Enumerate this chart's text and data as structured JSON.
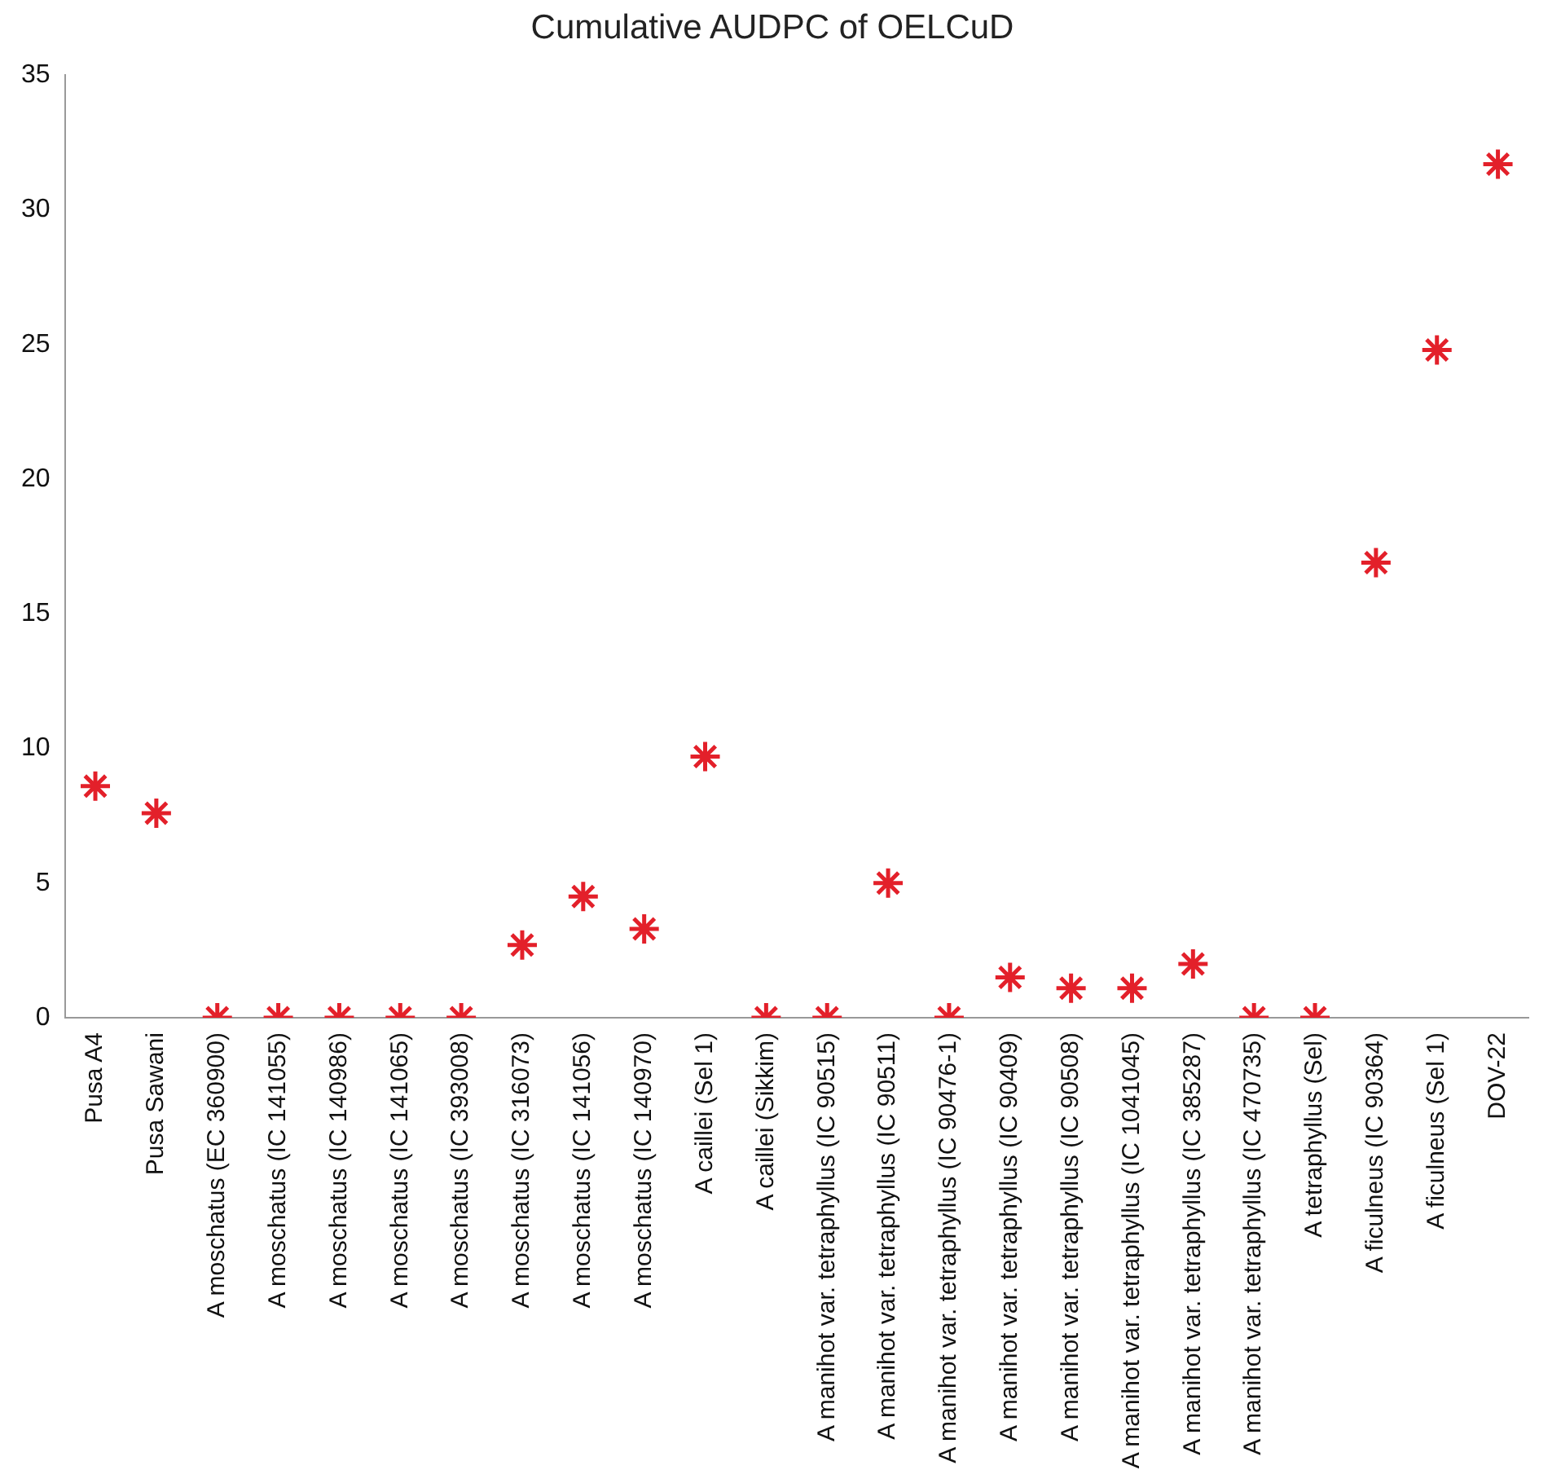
{
  "chart_data": {
    "type": "scatter",
    "title": "Cumulative AUDPC of OELCuD",
    "categories": [
      "Pusa A4",
      "Pusa Sawani",
      "A moschatus (EC 360900)",
      "A moschatus (IC 141055)",
      "A moschatus (IC 140986)",
      "A moschatus (IC 141065)",
      "A moschatus (IC 393008)",
      "A moschatus (IC 316073)",
      "A moschatus (IC 141056)",
      "A moschatus (IC 140970)",
      "A caillei (Sel 1)",
      "A caillei (Sikkim)",
      "A manihot var. tetraphyllus (IC 90515)",
      "A manihot var. tetraphyllus (IC 90511)",
      "A manihot var. tetraphyllus (IC 90476-1)",
      "A manihot var. tetraphyllus (IC 90409)",
      "A manihot var. tetraphyllus (IC 90508)",
      "A manihot var. tetraphyllus (IC 1041045)",
      "A manihot var. tetraphyllus (IC 385287)",
      "A manihot var. tetraphyllus (IC 470735)",
      "A tetraphyllus (Sel)",
      "A ficulneus (IC 90364)",
      "A ficulneus (Sel 1)",
      "DOV-22"
    ],
    "values": [
      8.6,
      7.6,
      0,
      0,
      0,
      0,
      0,
      2.7,
      4.5,
      3.3,
      9.7,
      0,
      0,
      5.0,
      0,
      1.5,
      1.1,
      1.1,
      2.0,
      0,
      0,
      16.9,
      24.8,
      31.7
    ],
    "color": "#e3202a",
    "marker": "cross",
    "ylim": [
      0,
      35
    ],
    "yticks": [
      0,
      5,
      10,
      15,
      20,
      25,
      30,
      35
    ]
  }
}
